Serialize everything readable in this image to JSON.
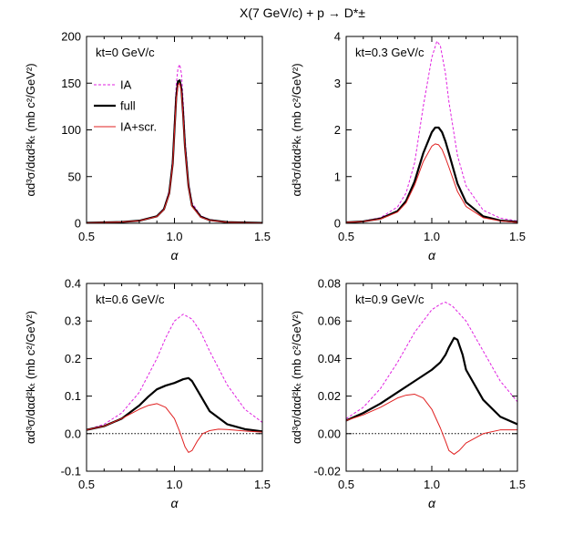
{
  "title": "X(7 GeV/c) + p → D*±",
  "ylabel": "αd³σ/dαd²kₜ (mb c²/GeV²)",
  "legend": [
    {
      "name": "IA",
      "color": "#e020e0",
      "dash": "3,2",
      "width": 1
    },
    {
      "name": "full",
      "color": "#000000",
      "dash": "",
      "width": 2.2
    },
    {
      "name": "IA+scr.",
      "color": "#e02020",
      "dash": "",
      "width": 1
    }
  ],
  "chart_data": [
    {
      "type": "line",
      "label": "kt=0 GeV/c",
      "xlabel": "α",
      "xlim": [
        0.5,
        1.5
      ],
      "ylim": [
        0,
        200
      ],
      "xticks": [
        "0.5",
        "1.0",
        "1.5"
      ],
      "yticks": [
        "0",
        "50",
        "100",
        "150",
        "200"
      ],
      "zero_line": false,
      "legend": true,
      "series": [
        {
          "name": "IA",
          "x": [
            0.5,
            0.7,
            0.8,
            0.9,
            0.94,
            0.97,
            0.99,
            1.0,
            1.01,
            1.02,
            1.03,
            1.04,
            1.05,
            1.06,
            1.08,
            1.1,
            1.15,
            1.2,
            1.3,
            1.5
          ],
          "y": [
            0.5,
            1.5,
            3,
            8,
            16,
            35,
            70,
            110,
            148,
            166,
            170,
            160,
            130,
            92,
            45,
            22,
            8,
            4,
            1.5,
            0.5
          ]
        },
        {
          "name": "full",
          "x": [
            0.5,
            0.7,
            0.8,
            0.9,
            0.94,
            0.97,
            0.99,
            1.0,
            1.01,
            1.02,
            1.03,
            1.04,
            1.05,
            1.06,
            1.08,
            1.1,
            1.15,
            1.2,
            1.3,
            1.5
          ],
          "y": [
            0.5,
            1.4,
            2.8,
            7.5,
            15,
            32,
            64,
            100,
            135,
            152,
            153,
            143,
            115,
            82,
            40,
            19,
            7,
            3.5,
            1.2,
            0.4
          ]
        },
        {
          "name": "IA+scr.",
          "x": [
            0.5,
            0.7,
            0.8,
            0.9,
            0.94,
            0.97,
            0.99,
            1.0,
            1.01,
            1.02,
            1.03,
            1.04,
            1.05,
            1.06,
            1.08,
            1.1,
            1.15,
            1.2,
            1.3,
            1.5
          ],
          "y": [
            0.5,
            1.4,
            2.7,
            7.2,
            14.5,
            31,
            62,
            98,
            132,
            148,
            150,
            140,
            112,
            80,
            39,
            18,
            6.5,
            3.2,
            1.1,
            0.4
          ]
        }
      ]
    },
    {
      "type": "line",
      "label": "kt=0.3 GeV/c",
      "xlabel": "α",
      "xlim": [
        0.5,
        1.5
      ],
      "ylim": [
        0,
        4
      ],
      "xticks": [
        "0.5",
        "1.0",
        "1.5"
      ],
      "yticks": [
        "0",
        "1",
        "2",
        "3",
        "4"
      ],
      "zero_line": false,
      "legend": false,
      "series": [
        {
          "name": "IA",
          "x": [
            0.5,
            0.6,
            0.7,
            0.8,
            0.85,
            0.9,
            0.95,
            1.0,
            1.03,
            1.05,
            1.08,
            1.1,
            1.15,
            1.2,
            1.3,
            1.4,
            1.5
          ],
          "y": [
            0.02,
            0.05,
            0.12,
            0.35,
            0.65,
            1.3,
            2.5,
            3.55,
            3.9,
            3.8,
            3.2,
            2.6,
            1.45,
            0.8,
            0.28,
            0.11,
            0.05
          ]
        },
        {
          "name": "full",
          "x": [
            0.5,
            0.6,
            0.7,
            0.8,
            0.85,
            0.9,
            0.95,
            1.0,
            1.02,
            1.04,
            1.06,
            1.08,
            1.1,
            1.15,
            1.2,
            1.3,
            1.4,
            1.5
          ],
          "y": [
            0.02,
            0.04,
            0.1,
            0.26,
            0.48,
            0.9,
            1.5,
            1.95,
            2.05,
            2.05,
            1.95,
            1.75,
            1.5,
            0.85,
            0.45,
            0.15,
            0.06,
            0.03
          ]
        },
        {
          "name": "IA+scr.",
          "x": [
            0.5,
            0.6,
            0.7,
            0.8,
            0.85,
            0.9,
            0.95,
            1.0,
            1.02,
            1.04,
            1.06,
            1.08,
            1.1,
            1.15,
            1.2,
            1.3,
            1.4,
            1.5
          ],
          "y": [
            0.02,
            0.04,
            0.09,
            0.24,
            0.44,
            0.82,
            1.32,
            1.65,
            1.7,
            1.68,
            1.58,
            1.4,
            1.2,
            0.68,
            0.36,
            0.12,
            0.05,
            0.02
          ]
        }
      ]
    },
    {
      "type": "line",
      "label": "kt=0.6 GeV/c",
      "xlabel": "α",
      "xlim": [
        0.5,
        1.5
      ],
      "ylim": [
        -0.1,
        0.4
      ],
      "xticks": [
        "0.5",
        "1.0",
        "1.5"
      ],
      "yticks": [
        "-0.1",
        "0.0",
        "0.1",
        "0.2",
        "0.3",
        "0.4"
      ],
      "zero_line": true,
      "legend": false,
      "series": [
        {
          "name": "IA",
          "x": [
            0.5,
            0.6,
            0.7,
            0.8,
            0.9,
            0.95,
            1.0,
            1.05,
            1.1,
            1.15,
            1.2,
            1.3,
            1.4,
            1.5
          ],
          "y": [
            0.01,
            0.025,
            0.055,
            0.11,
            0.2,
            0.255,
            0.3,
            0.318,
            0.305,
            0.27,
            0.22,
            0.13,
            0.065,
            0.03
          ]
        },
        {
          "name": "full",
          "x": [
            0.5,
            0.6,
            0.7,
            0.8,
            0.85,
            0.9,
            0.95,
            1.0,
            1.05,
            1.08,
            1.1,
            1.15,
            1.2,
            1.3,
            1.4,
            1.5
          ],
          "y": [
            0.01,
            0.02,
            0.04,
            0.075,
            0.098,
            0.118,
            0.128,
            0.135,
            0.145,
            0.148,
            0.14,
            0.1,
            0.06,
            0.025,
            0.012,
            0.006
          ]
        },
        {
          "name": "IA+scr.",
          "x": [
            0.5,
            0.6,
            0.7,
            0.8,
            0.85,
            0.9,
            0.95,
            1.0,
            1.03,
            1.06,
            1.08,
            1.1,
            1.13,
            1.16,
            1.2,
            1.25,
            1.3,
            1.4,
            1.5
          ],
          "y": [
            0.01,
            0.02,
            0.04,
            0.065,
            0.075,
            0.08,
            0.07,
            0.04,
            0.005,
            -0.035,
            -0.05,
            -0.045,
            -0.02,
            0.0,
            0.008,
            0.012,
            0.011,
            0.007,
            0.004
          ]
        }
      ]
    },
    {
      "type": "line",
      "label": "kt=0.9 GeV/c",
      "xlabel": "α",
      "xlim": [
        0.5,
        1.5
      ],
      "ylim": [
        -0.02,
        0.08
      ],
      "xticks": [
        "0.5",
        "1.0",
        "1.5"
      ],
      "yticks": [
        "-0.02",
        "0.00",
        "0.02",
        "0.04",
        "0.06",
        "0.08"
      ],
      "zero_line": true,
      "legend": false,
      "series": [
        {
          "name": "IA",
          "x": [
            0.5,
            0.6,
            0.7,
            0.8,
            0.9,
            1.0,
            1.05,
            1.08,
            1.12,
            1.2,
            1.3,
            1.4,
            1.5
          ],
          "y": [
            0.008,
            0.014,
            0.024,
            0.038,
            0.054,
            0.066,
            0.069,
            0.07,
            0.068,
            0.06,
            0.044,
            0.028,
            0.017
          ]
        },
        {
          "name": "full",
          "x": [
            0.5,
            0.6,
            0.7,
            0.8,
            0.9,
            1.0,
            1.05,
            1.08,
            1.1,
            1.13,
            1.15,
            1.18,
            1.2,
            1.3,
            1.4,
            1.5
          ],
          "y": [
            0.007,
            0.011,
            0.016,
            0.022,
            0.028,
            0.034,
            0.038,
            0.042,
            0.046,
            0.051,
            0.05,
            0.042,
            0.034,
            0.018,
            0.009,
            0.005
          ]
        },
        {
          "name": "IA+scr.",
          "x": [
            0.5,
            0.6,
            0.7,
            0.8,
            0.85,
            0.9,
            0.95,
            1.0,
            1.05,
            1.08,
            1.1,
            1.13,
            1.16,
            1.2,
            1.3,
            1.4,
            1.5
          ],
          "y": [
            0.007,
            0.01,
            0.014,
            0.019,
            0.0205,
            0.021,
            0.019,
            0.013,
            0.003,
            -0.004,
            -0.009,
            -0.011,
            -0.009,
            -0.005,
            0.0,
            0.002,
            0.002
          ]
        }
      ]
    }
  ]
}
